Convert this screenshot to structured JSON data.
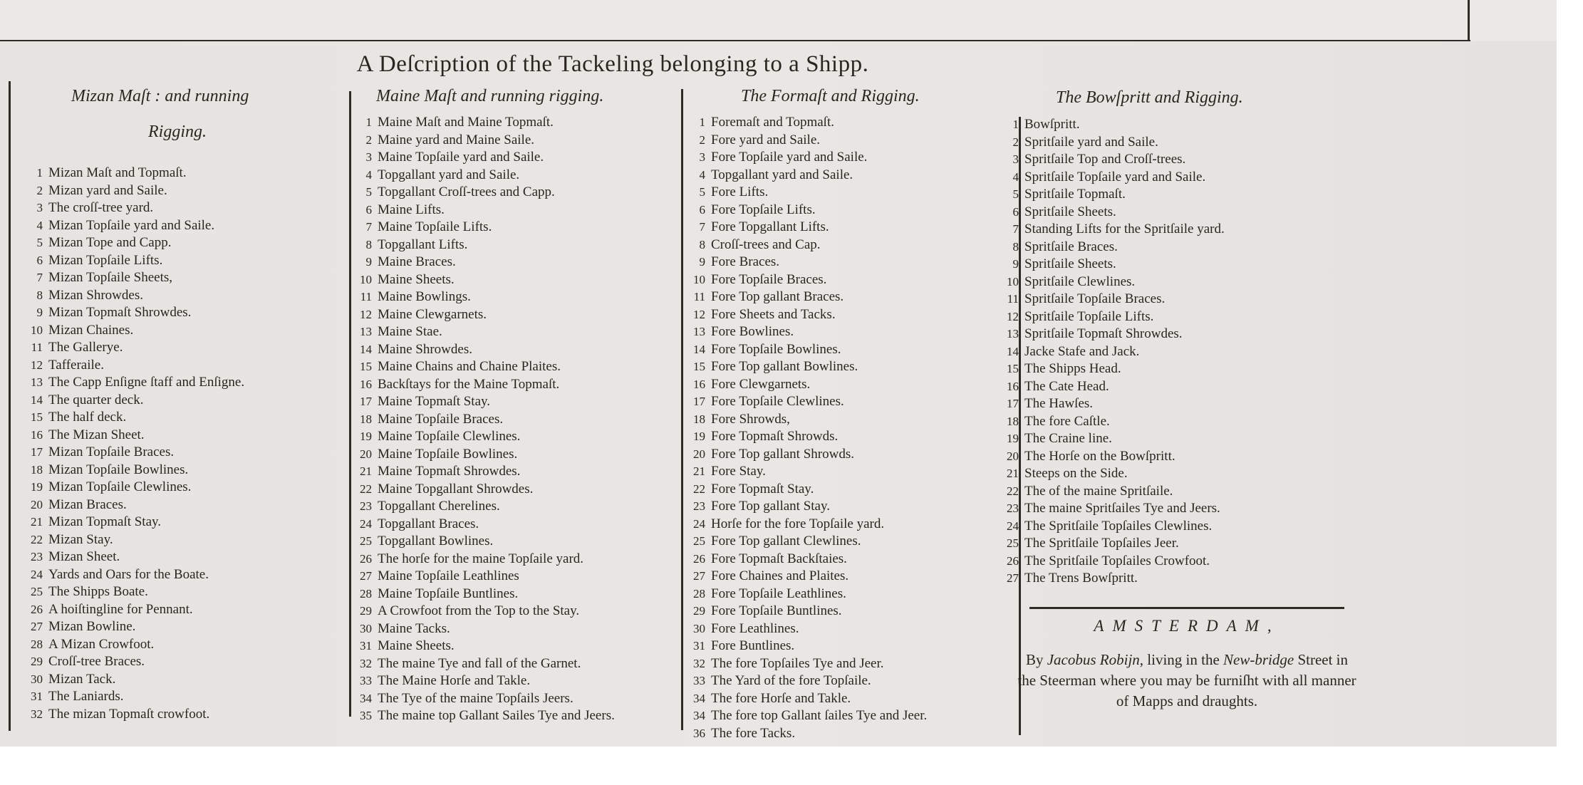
{
  "title": "A Deſcription of the Tackeling belonging to a Shipp.",
  "columns": [
    {
      "heading": "Mizan Maſt : and running",
      "heading2": "Rigging.",
      "items": [
        [
          "1",
          "Mizan Maſt and Topmaſt."
        ],
        [
          "2",
          "Mizan yard and Saile."
        ],
        [
          "3",
          "The croſſ-tree yard."
        ],
        [
          "4",
          "Mizan Topſaile yard and Saile."
        ],
        [
          "5",
          "Mizan Tope and Capp."
        ],
        [
          "6",
          "Mizan Topſaile Lifts."
        ],
        [
          "7",
          "Mizan Topſaile Sheets,"
        ],
        [
          "8",
          "Mizan Shrowdes."
        ],
        [
          "9",
          "Mizan Topmaſt Shrowdes."
        ],
        [
          "10",
          "Mizan Chaines."
        ],
        [
          "11",
          "The Gallerye."
        ],
        [
          "12",
          "Tafferaile."
        ],
        [
          "13",
          "The Capp Enſigne ſtaff and Enſigne."
        ],
        [
          "14",
          "The quarter deck."
        ],
        [
          "15",
          "The half deck."
        ],
        [
          "16",
          "The Mizan Sheet."
        ],
        [
          "17",
          "Mizan Topſaile Braces."
        ],
        [
          "18",
          "Mizan Topſaile Bowlines."
        ],
        [
          "19",
          "Mizan Topſaile Clewlines."
        ],
        [
          "20",
          "Mizan Braces."
        ],
        [
          "21",
          "Mizan Topmaſt Stay."
        ],
        [
          "22",
          "Mizan Stay."
        ],
        [
          "23",
          "Mizan Sheet."
        ],
        [
          "24",
          "Yards and Oars for the Boate."
        ],
        [
          "25",
          "The Shipps Boate."
        ],
        [
          "26",
          "A hoiſtingline for Pennant."
        ],
        [
          "27",
          "Mizan Bowline."
        ],
        [
          "28",
          "A Mizan Crowfoot."
        ],
        [
          "29",
          "Croſſ-tree Braces."
        ],
        [
          "30",
          "Mizan Tack."
        ],
        [
          "31",
          "The Laniards."
        ],
        [
          "32",
          "The mizan Topmaſt crowfoot."
        ]
      ]
    },
    {
      "heading": "Maine Maſt and running rigging.",
      "items": [
        [
          "1",
          "Maine Maſt and Maine Topmaſt."
        ],
        [
          "2",
          "Maine yard and Maine Saile."
        ],
        [
          "3",
          "Maine Topſaile yard and Saile."
        ],
        [
          "4",
          "Topgallant yard and Saile."
        ],
        [
          "5",
          "Topgallant Croſſ-trees and Capp."
        ],
        [
          "6",
          "Maine Lifts."
        ],
        [
          "7",
          "Maine Topſaile Lifts."
        ],
        [
          "8",
          "Topgallant Lifts."
        ],
        [
          "9",
          "Maine Braces."
        ],
        [
          "10",
          "Maine Sheets."
        ],
        [
          "11",
          "Maine Bowlings."
        ],
        [
          "12",
          "Maine Clewgarnets."
        ],
        [
          "13",
          "Maine Stae."
        ],
        [
          "14",
          "Maine Shrowdes."
        ],
        [
          "15",
          "Maine Chains and Chaine Plaites."
        ],
        [
          "16",
          "Backſtays for the Maine Topmaſt."
        ],
        [
          "17",
          "Maine Topmaſt Stay."
        ],
        [
          "18",
          "Maine Topſaile Braces."
        ],
        [
          "19",
          "Maine Topſaile Clewlines."
        ],
        [
          "20",
          "Maine Topſaile Bowlines."
        ],
        [
          "21",
          "Maine Topmaſt Shrowdes."
        ],
        [
          "22",
          "Maine Topgallant Shrowdes."
        ],
        [
          "23",
          "Topgallant Cherelines."
        ],
        [
          "24",
          "Topgallant Braces."
        ],
        [
          "25",
          "Topgallant Bowlines."
        ],
        [
          "26",
          "The horſe for the maine Topſaile yard."
        ],
        [
          "27",
          "Maine Topſaile Leathlines"
        ],
        [
          "28",
          "Maine Topſaile Buntlines."
        ],
        [
          "29",
          "A Crowfoot from the Top to the Stay."
        ],
        [
          "30",
          "Maine Tacks."
        ],
        [
          "31",
          "Maine Sheets."
        ],
        [
          "32",
          "The maine Tye and fall of the Garnet."
        ],
        [
          "33",
          "The Maine Horſe and Takle."
        ],
        [
          "34",
          "The Tye of the maine Topſails Jeers."
        ],
        [
          "35",
          "The maine top Gallant Sailes Tye and Jeers."
        ]
      ]
    },
    {
      "heading": "The Formaſt and Rigging.",
      "items": [
        [
          "1",
          "Foremaſt and Topmaſt."
        ],
        [
          "2",
          "Fore yard and Saile."
        ],
        [
          "3",
          "Fore Topſaile yard and Saile."
        ],
        [
          "4",
          "Topgallant yard and Saile."
        ],
        [
          "5",
          "Fore Lifts."
        ],
        [
          "6",
          "Fore Topſaile Lifts."
        ],
        [
          "7",
          "Fore Topgallant Lifts."
        ],
        [
          "8",
          "Croſſ-trees and Cap."
        ],
        [
          "9",
          "Fore Braces."
        ],
        [
          "10",
          "Fore Topſaile Braces."
        ],
        [
          "11",
          "Fore Top gallant Braces."
        ],
        [
          "12",
          "Fore Sheets and Tacks."
        ],
        [
          "13",
          "Fore Bowlines."
        ],
        [
          "14",
          "Fore Topſaile Bowlines."
        ],
        [
          "15",
          "Fore Top gallant Bowlines."
        ],
        [
          "16",
          "Fore Clewgarnets."
        ],
        [
          "17",
          "Fore Topſaile Clewlines."
        ],
        [
          "18",
          "Fore Shrowds,"
        ],
        [
          "19",
          "Fore Topmaſt Shrowds."
        ],
        [
          "20",
          "Fore Top gallant Shrowds."
        ],
        [
          "21",
          "Fore Stay."
        ],
        [
          "22",
          "Fore Topmaſt Stay."
        ],
        [
          "23",
          "Fore Top gallant Stay."
        ],
        [
          "24",
          "Horſe for the fore Topſaile yard."
        ],
        [
          "25",
          "Fore Top gallant Clewlines."
        ],
        [
          "26",
          "Fore Topmaſt Backſtaies."
        ],
        [
          "27",
          "Fore Chaines and Plaites."
        ],
        [
          "28",
          "Fore Topſaile Leathlines."
        ],
        [
          "29",
          "Fore Topſaile Buntlines."
        ],
        [
          "30",
          "Fore Leathlines."
        ],
        [
          "31",
          "Fore Buntlines."
        ],
        [
          "32",
          "The fore Topſailes Tye and Jeer."
        ],
        [
          "33",
          "The Yard of the fore Topſaile."
        ],
        [
          "34",
          "The fore Horſe and Takle."
        ],
        [
          "34",
          "The fore top Gallant ſailes Tye and Jeer."
        ],
        [
          "36",
          "The fore Tacks."
        ]
      ]
    },
    {
      "heading": "The Bowſpritt and Rigging.",
      "items": [
        [
          "1",
          "Bowſpritt."
        ],
        [
          "2",
          "Spritſaile yard and Saile."
        ],
        [
          "3",
          "Spritſaile Top and Croſſ-trees."
        ],
        [
          "4",
          "Spritſaile Topſaile yard and Saile."
        ],
        [
          "5",
          "Spritſaile Topmaſt."
        ],
        [
          "6",
          "Spritſaile Sheets."
        ],
        [
          "7",
          "Standing Lifts for the Spritſaile yard."
        ],
        [
          "8",
          "Spritſaile Braces."
        ],
        [
          "9",
          "Spritſaile Sheets."
        ],
        [
          "10",
          "Spritſaile Clewlines."
        ],
        [
          "11",
          "Spritſaile Topſaile Braces."
        ],
        [
          "12",
          "Spritſaile Topſaile Lifts."
        ],
        [
          "13",
          "Spritſaile Topmaſt Shrowdes."
        ],
        [
          "14",
          "Jacke Stafe and Jack."
        ],
        [
          "15",
          "The Shipps Head."
        ],
        [
          "16",
          "The Cate Head."
        ],
        [
          "17",
          "The Hawſes."
        ],
        [
          "18",
          "The fore Caſtle."
        ],
        [
          "19",
          "The Craine line."
        ],
        [
          "20",
          "The Horſe on the Bowſpritt."
        ],
        [
          "21",
          "Steeps on the Side."
        ],
        [
          "22",
          "The of the maine Spritſaile."
        ],
        [
          "23",
          "The maine Spritſailes Tye and Jeers."
        ],
        [
          "24",
          "The Spritſaile Topſailes Clewlines."
        ],
        [
          "25",
          "The Spritſaile Topſailes Jeer."
        ],
        [
          "26",
          "The Spritſaile Topſailes Crowfoot."
        ],
        [
          "27",
          "The Trens Bowſpritt."
        ]
      ]
    }
  ],
  "imprint": {
    "city": "AMSTERDAM,",
    "by": "By",
    "publisher": "Jacobus Robijn",
    "text1": ", living in the",
    "street_italic": "New-bridge",
    "text2": "Street in the Steerman where you may be furniſht with all manner of Mapps and draughts."
  }
}
